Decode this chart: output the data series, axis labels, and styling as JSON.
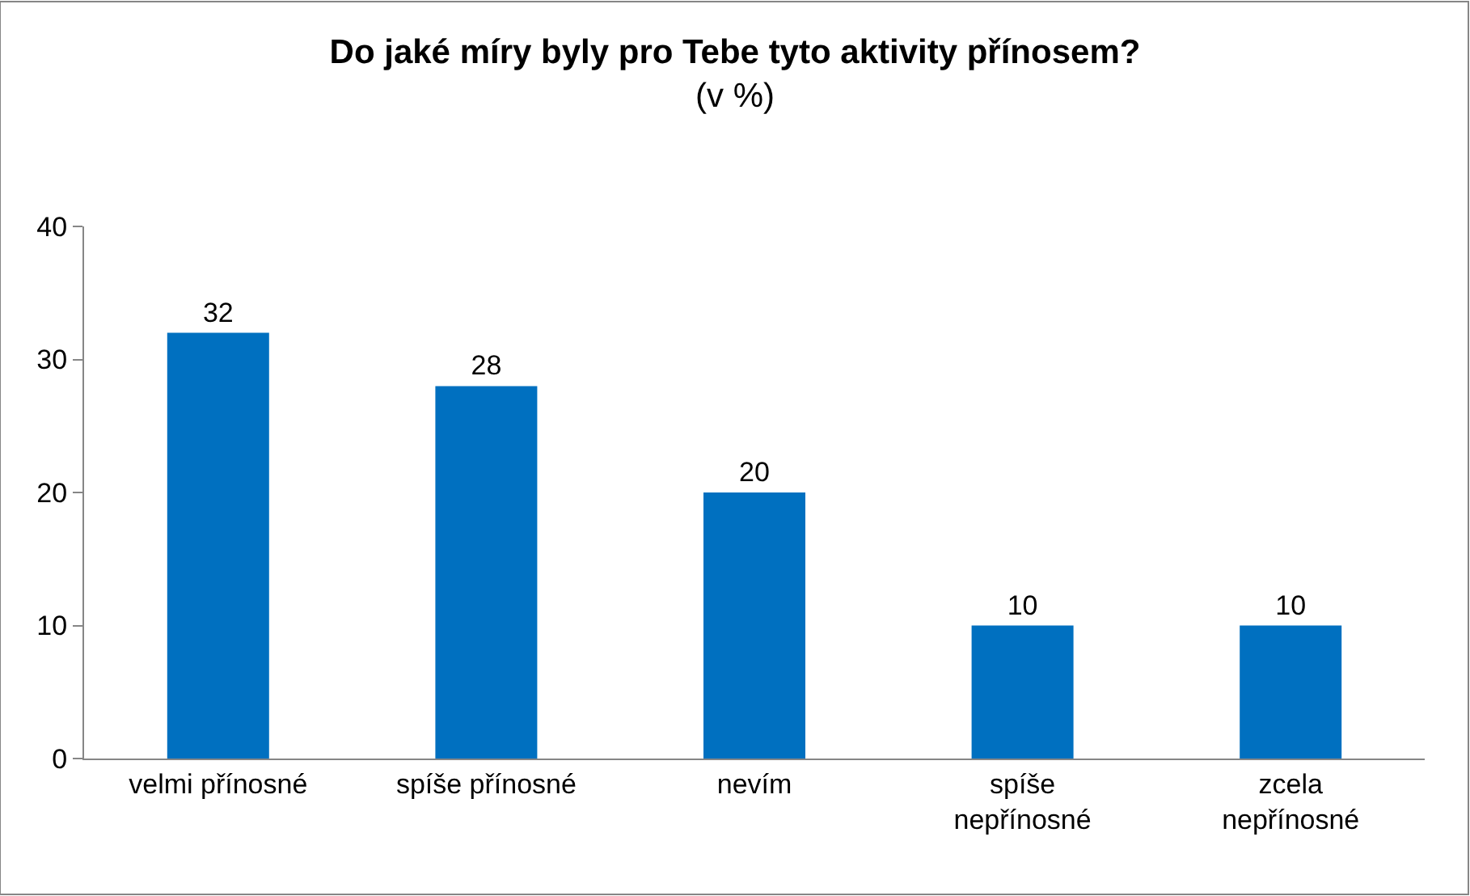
{
  "chart_data": {
    "type": "bar",
    "title": "Do jaké míry byly pro Tebe tyto aktivity přínosem?",
    "subtitle": "(v %)",
    "categories": [
      "velmi přínosné",
      "spíše přínosné",
      "nevím",
      "spíše\nnepřínosné",
      "zcela\nnepřínosné"
    ],
    "values": [
      32,
      28,
      20,
      10,
      10
    ],
    "color": "#0070c0",
    "ylim": [
      0,
      40
    ],
    "yticks": [
      0,
      10,
      20,
      30,
      40
    ],
    "data_labels": true
  }
}
